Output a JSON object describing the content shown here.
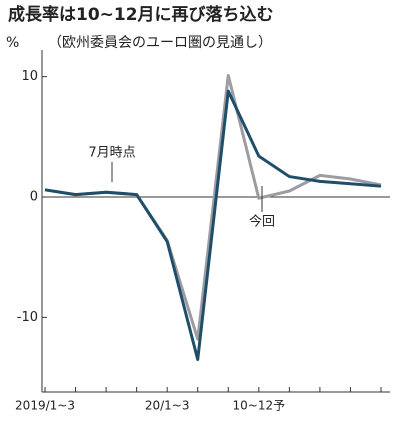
{
  "chart_data": {
    "type": "line",
    "title": "成長率は10~12月に再び落ち込む",
    "subtitle": "（欧州委員会のユーロ圏の見通し）",
    "y_label": "%",
    "categories": [
      "2019/1~3",
      null,
      null,
      null,
      "20/1~3",
      null,
      null,
      "10~12予",
      null,
      null,
      null,
      null
    ],
    "series": [
      {
        "name": "7月時点",
        "color": "#1f4e6b",
        "values": [
          0.6,
          0.2,
          0.4,
          0.2,
          -3.7,
          -13.5,
          8.8,
          3.4,
          1.7,
          1.3,
          1.1,
          0.9
        ]
      },
      {
        "name": "今回",
        "color": "#9c9ca2",
        "values": [
          0.6,
          0.2,
          0.4,
          0.2,
          -3.6,
          -11.8,
          10.1,
          -0.1,
          0.5,
          1.8,
          1.5,
          1.0
        ]
      }
    ],
    "ylim": [
      -16.2,
      11.8
    ],
    "yticks": [
      -10,
      0,
      10
    ]
  }
}
